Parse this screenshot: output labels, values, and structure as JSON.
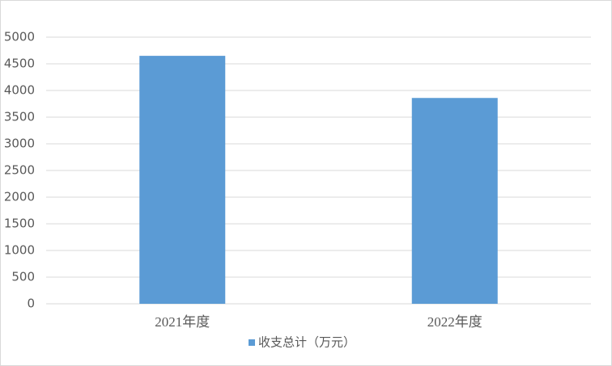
{
  "chart_data": {
    "type": "bar",
    "categories": [
      "2021年度",
      "2022年度"
    ],
    "series": [
      {
        "name": "收支总计（万元）",
        "color": "#5b9bd5",
        "values": [
          4650,
          3860
        ]
      }
    ],
    "ylim": [
      0,
      5000
    ],
    "yticks": [
      0,
      500,
      1000,
      1500,
      2000,
      2500,
      3000,
      3500,
      4000,
      4500,
      5000
    ],
    "grid": true,
    "legend": "bottom"
  }
}
